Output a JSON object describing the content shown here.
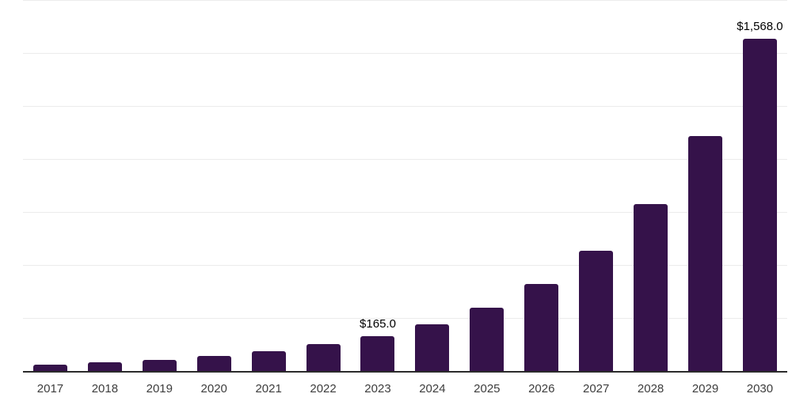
{
  "chart_data": {
    "type": "bar",
    "title": "",
    "xlabel": "",
    "ylabel": "",
    "legend": "none",
    "grid_on": true,
    "y_axis_tick_labels_visible": false,
    "ylim": [
      0,
      1750
    ],
    "grid_step": 250,
    "categories": [
      "2017",
      "2018",
      "2019",
      "2020",
      "2021",
      "2022",
      "2023",
      "2024",
      "2025",
      "2026",
      "2027",
      "2028",
      "2029",
      "2030"
    ],
    "values": [
      30,
      42,
      53,
      70,
      93,
      127,
      165,
      220,
      299,
      411,
      566,
      787,
      1110,
      1568
    ],
    "data_labels": {
      "2023": "$165.0",
      "2030": "$1,568.0"
    },
    "currency_prefix": "$"
  },
  "colors": {
    "background": "#ffffff",
    "bar": "#35124a",
    "gridline": "#ececec",
    "axis": "#2b2b2b",
    "value_label": "#000000",
    "tick_label": "#3d3d3d"
  }
}
